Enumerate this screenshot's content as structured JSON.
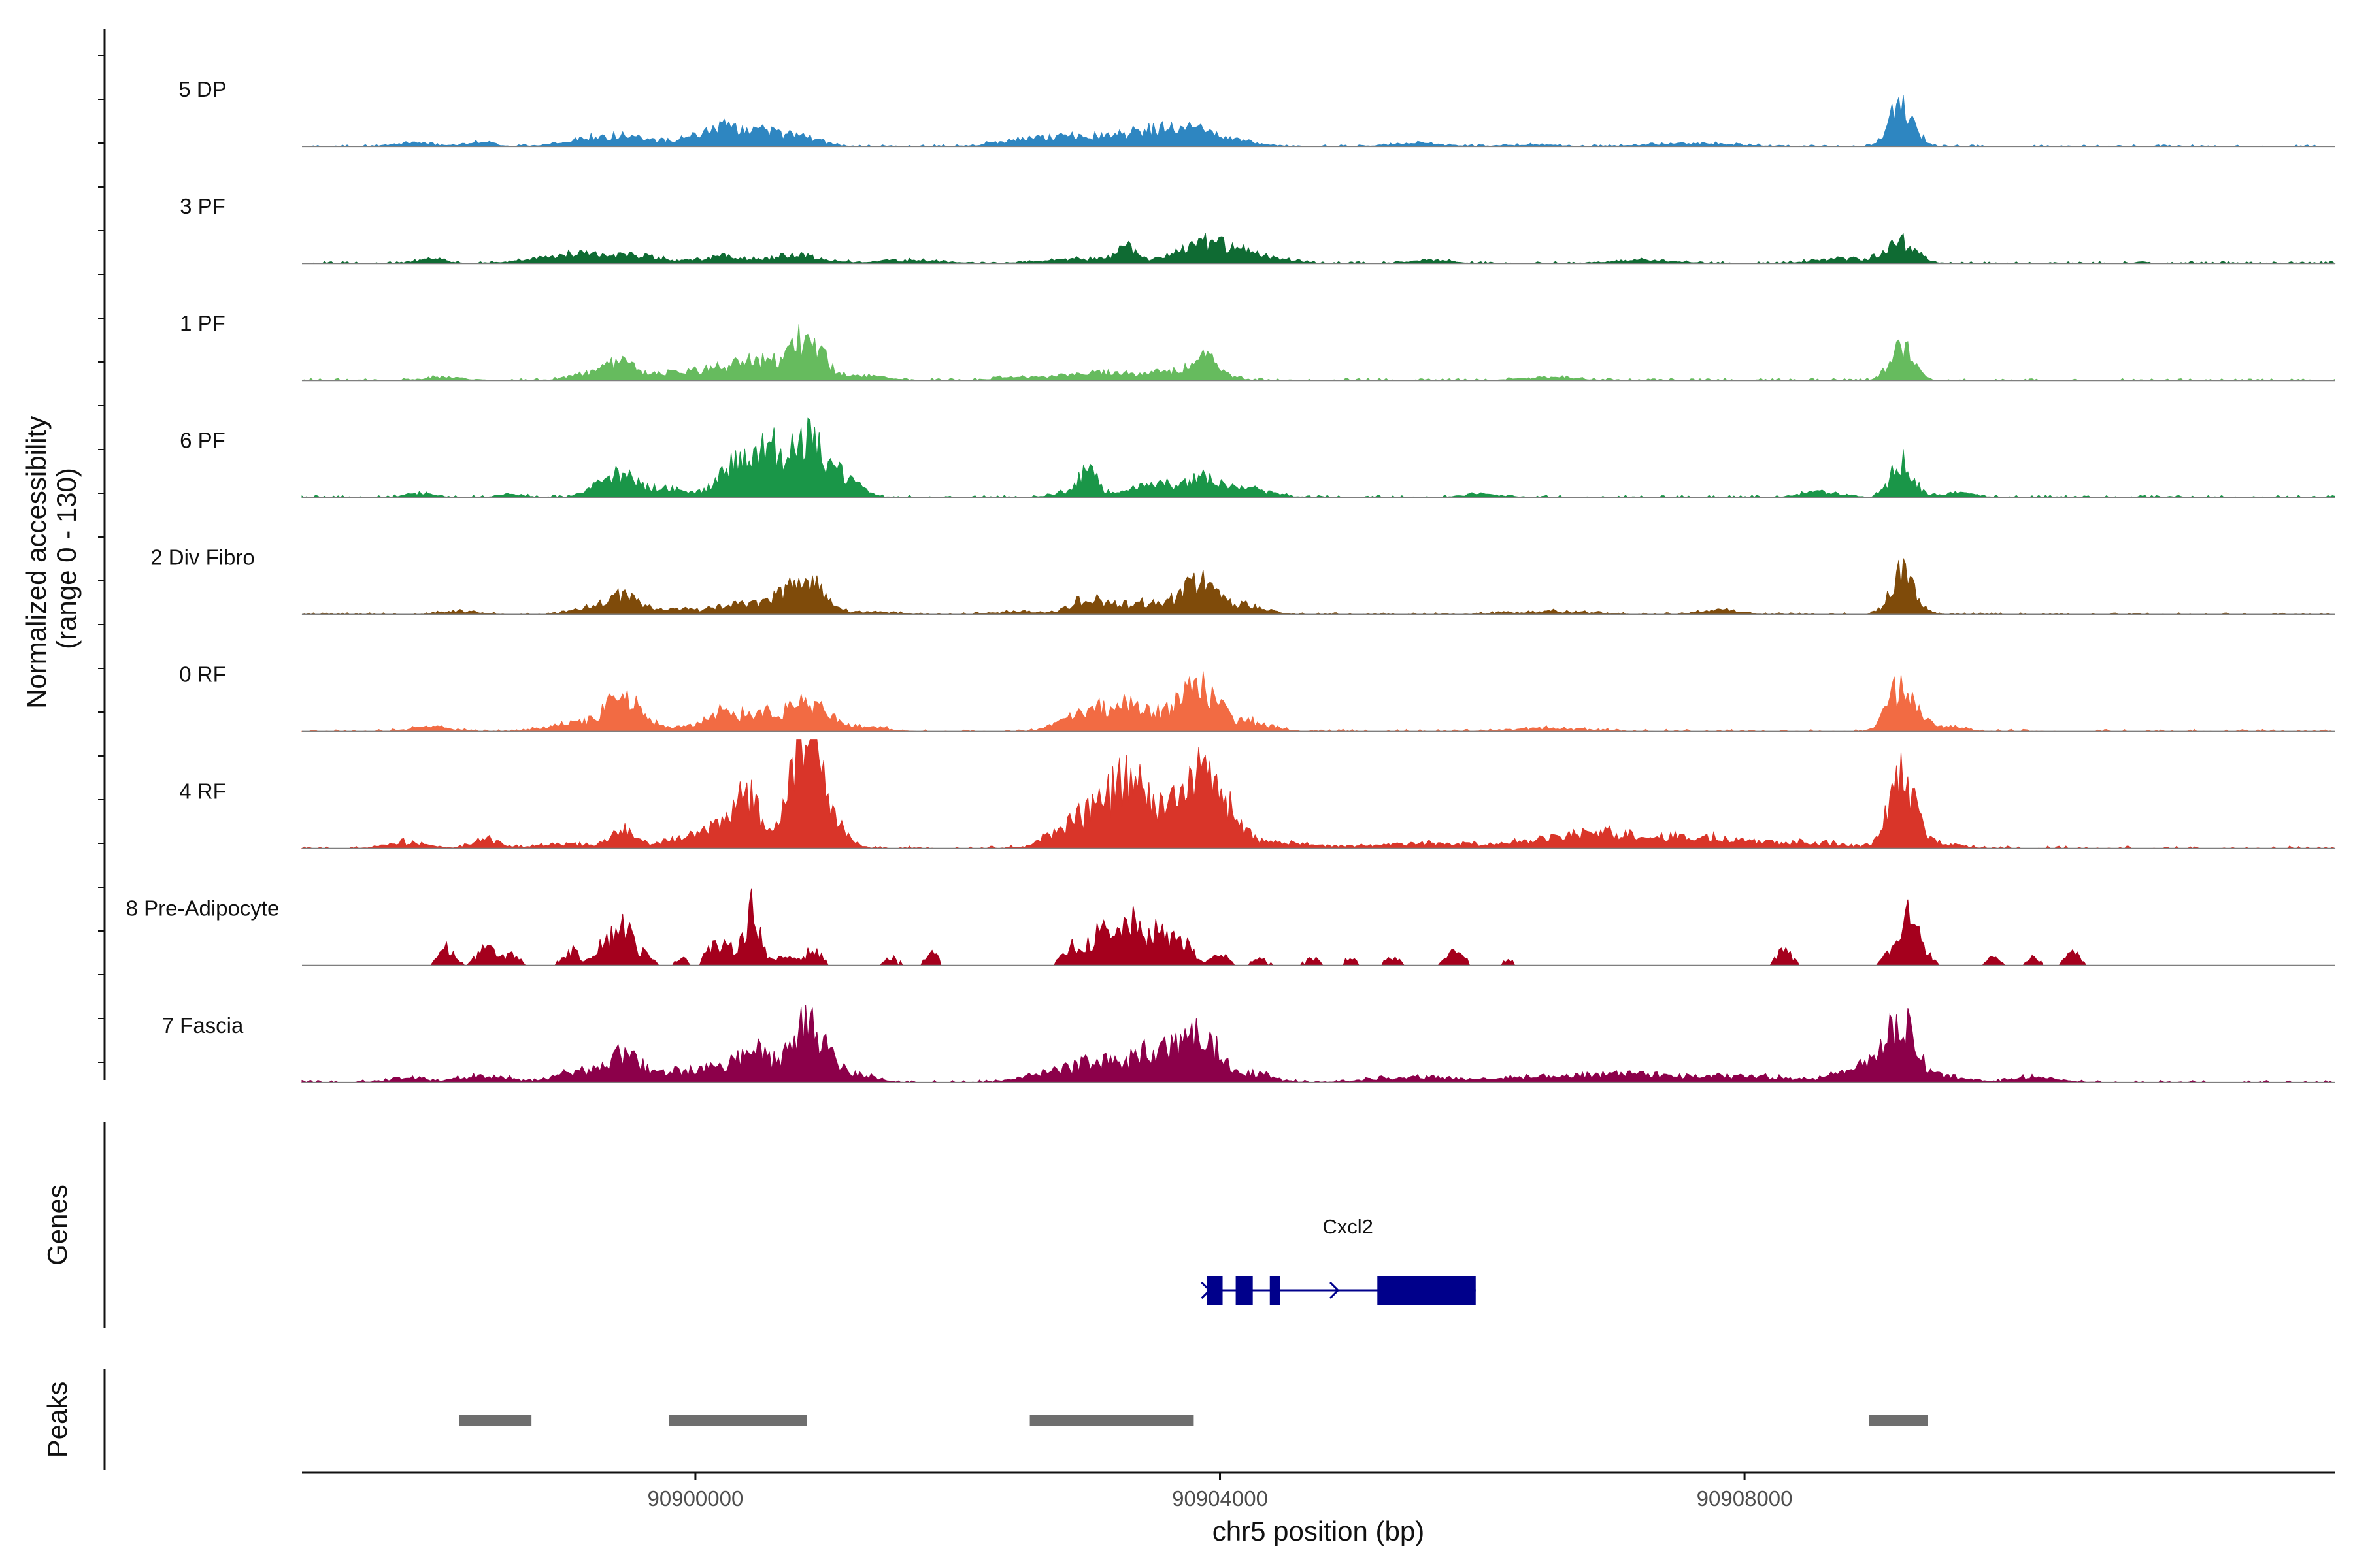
{
  "chart_data": {
    "type": "area",
    "title": "",
    "ylabel": "Normalized accessibility\n(range 0 - 130)",
    "ylabel_lines": [
      "Normalized accessibility",
      "(range 0 - 130)"
    ],
    "xlabel": "chr5 position (bp)",
    "chromosome": "chr5",
    "xlim": [
      90897000,
      90912500
    ],
    "ylim": [
      0,
      130
    ],
    "x_ticks": [
      90900000,
      90904000,
      90908000
    ],
    "x_tick_labels": [
      "90900000",
      "90904000",
      "90908000"
    ],
    "series": [
      {
        "name": "5 DP",
        "color": "#2e86c1",
        "peaks": [
          [
            90897850,
            2,
            160
          ],
          [
            90898350,
            3,
            100
          ],
          [
            90899300,
            7,
            240
          ],
          [
            90899700,
            2,
            200
          ],
          [
            90900300,
            14,
            240
          ],
          [
            90900800,
            6,
            150
          ],
          [
            90902500,
            3,
            200
          ],
          [
            90903000,
            6,
            350
          ],
          [
            90903700,
            12,
            300
          ],
          [
            90905500,
            2,
            200
          ],
          [
            90906400,
            1,
            200
          ],
          [
            90907600,
            2,
            300
          ],
          [
            90909200,
            30,
            90
          ]
        ],
        "noise": 1.2
      },
      {
        "name": "3 PF",
        "color": "#0f6b33",
        "peaks": [
          [
            90898000,
            3,
            100
          ],
          [
            90899100,
            7,
            280
          ],
          [
            90899600,
            4,
            150
          ],
          [
            90900200,
            5,
            150
          ],
          [
            90900750,
            6,
            180
          ],
          [
            90901600,
            2,
            250
          ],
          [
            90903300,
            9,
            70
          ],
          [
            90903000,
            3,
            300
          ],
          [
            90903900,
            14,
            200
          ],
          [
            90904300,
            4,
            200
          ],
          [
            90905600,
            2,
            150
          ],
          [
            90907200,
            2,
            250
          ],
          [
            90908800,
            3,
            250
          ],
          [
            90909200,
            14,
            110
          ]
        ],
        "noise": 1.3
      },
      {
        "name": "1 PF",
        "color": "#66bb5e",
        "peaks": [
          [
            90898100,
            2,
            150
          ],
          [
            90899200,
            5,
            150
          ],
          [
            90899450,
            13,
            100
          ],
          [
            90899800,
            4,
            150
          ],
          [
            90900200,
            8,
            200
          ],
          [
            90900500,
            10,
            150
          ],
          [
            90900850,
            28,
            130
          ],
          [
            90901300,
            3,
            150
          ],
          [
            90902500,
            2,
            200
          ],
          [
            90903100,
            5,
            250
          ],
          [
            90903700,
            6,
            250
          ],
          [
            90903900,
            10,
            90
          ],
          [
            90906500,
            2,
            200
          ],
          [
            90909200,
            22,
            90
          ]
        ],
        "noise": 1.5
      },
      {
        "name": "6 PF",
        "color": "#1a9648",
        "peaks": [
          [
            90897900,
            3,
            100
          ],
          [
            90898600,
            2,
            100
          ],
          [
            90899400,
            16,
            140
          ],
          [
            90899800,
            6,
            140
          ],
          [
            90900300,
            22,
            130
          ],
          [
            90900550,
            28,
            90
          ],
          [
            90900850,
            38,
            140
          ],
          [
            90901150,
            10,
            120
          ],
          [
            90902800,
            3,
            100
          ],
          [
            90903000,
            18,
            70
          ],
          [
            90903500,
            8,
            200
          ],
          [
            90903900,
            12,
            160
          ],
          [
            90904300,
            4,
            150
          ],
          [
            90906000,
            2,
            150
          ],
          [
            90908600,
            4,
            150
          ],
          [
            90909200,
            26,
            80
          ],
          [
            90909600,
            3,
            150
          ]
        ],
        "noise": 1.6
      },
      {
        "name": "2 Div Fibro",
        "color": "#7f4b0a",
        "peaks": [
          [
            90898200,
            2,
            150
          ],
          [
            90899200,
            4,
            150
          ],
          [
            90899450,
            12,
            110
          ],
          [
            90899800,
            3,
            150
          ],
          [
            90900300,
            6,
            200
          ],
          [
            90900650,
            8,
            150
          ],
          [
            90900850,
            22,
            120
          ],
          [
            90901300,
            2,
            200
          ],
          [
            90902500,
            2,
            200
          ],
          [
            90903000,
            10,
            120
          ],
          [
            90903500,
            8,
            250
          ],
          [
            90903850,
            22,
            110
          ],
          [
            90904200,
            6,
            150
          ],
          [
            90906500,
            2,
            300
          ],
          [
            90907800,
            3,
            150
          ],
          [
            90909200,
            28,
            90
          ]
        ],
        "noise": 1.3
      },
      {
        "name": "0 RF",
        "color": "#f26b43",
        "peaks": [
          [
            90898000,
            3,
            150
          ],
          [
            90899100,
            6,
            200
          ],
          [
            90899450,
            22,
            120
          ],
          [
            90899800,
            3,
            150
          ],
          [
            90900200,
            14,
            120
          ],
          [
            90900500,
            12,
            120
          ],
          [
            90900850,
            18,
            160
          ],
          [
            90901300,
            3,
            150
          ],
          [
            90902900,
            8,
            150
          ],
          [
            90903200,
            14,
            160
          ],
          [
            90903500,
            10,
            200
          ],
          [
            90903850,
            28,
            140
          ],
          [
            90904250,
            6,
            150
          ],
          [
            90906500,
            2,
            300
          ],
          [
            90909200,
            32,
            100
          ],
          [
            90909500,
            3,
            150
          ]
        ],
        "noise": 1.5
      },
      {
        "name": "4 RF",
        "color": "#d93529",
        "peaks": [
          [
            90897800,
            4,
            150
          ],
          [
            90898400,
            6,
            100
          ],
          [
            90899000,
            3,
            200
          ],
          [
            90899450,
            12,
            90
          ],
          [
            90899900,
            3,
            200
          ],
          [
            90900000,
            4,
            200
          ],
          [
            90900250,
            12,
            150
          ],
          [
            90900400,
            28,
            90
          ],
          [
            90900650,
            10,
            150
          ],
          [
            90900850,
            72,
            110
          ],
          [
            90901000,
            20,
            120
          ],
          [
            90902800,
            10,
            150
          ],
          [
            90903050,
            18,
            150
          ],
          [
            90903300,
            38,
            140
          ],
          [
            90903600,
            22,
            150
          ],
          [
            90903850,
            40,
            110
          ],
          [
            90904050,
            25,
            120
          ],
          [
            90904500,
            4,
            200
          ],
          [
            90905500,
            3,
            400
          ],
          [
            90906500,
            3,
            400
          ],
          [
            90906900,
            8,
            300
          ],
          [
            90907500,
            5,
            300
          ],
          [
            90908000,
            5,
            300
          ],
          [
            90908600,
            3,
            200
          ],
          [
            90909200,
            48,
            100
          ],
          [
            90909500,
            3,
            150
          ]
        ],
        "noise": 1.8
      },
      {
        "name": "8 Pre-Adipocyte",
        "color": "#a5001d",
        "peaks": [
          [
            90898100,
            12,
            60
          ],
          [
            90898400,
            14,
            60
          ],
          [
            90898600,
            8,
            60
          ],
          [
            90899050,
            10,
            60
          ],
          [
            90899300,
            16,
            70
          ],
          [
            90899450,
            28,
            60
          ],
          [
            90899600,
            8,
            60
          ],
          [
            90899900,
            6,
            40
          ],
          [
            90900100,
            6,
            40
          ],
          [
            90900200,
            12,
            80
          ],
          [
            90900400,
            18,
            70
          ],
          [
            90900450,
            24,
            50
          ],
          [
            90900700,
            6,
            80
          ],
          [
            90900900,
            10,
            60
          ],
          [
            90901500,
            5,
            50
          ],
          [
            90901800,
            8,
            50
          ],
          [
            90902900,
            14,
            80
          ],
          [
            90903100,
            22,
            70
          ],
          [
            90903300,
            30,
            70
          ],
          [
            90903500,
            22,
            80
          ],
          [
            90903700,
            18,
            80
          ],
          [
            90904000,
            8,
            60
          ],
          [
            90904300,
            5,
            60
          ],
          [
            90904700,
            5,
            50
          ],
          [
            90905000,
            5,
            50
          ],
          [
            90905300,
            6,
            60
          ],
          [
            90905800,
            12,
            60
          ],
          [
            90906200,
            3,
            50
          ],
          [
            90908300,
            10,
            60
          ],
          [
            90909100,
            8,
            50
          ],
          [
            90909250,
            32,
            60
          ],
          [
            90909350,
            12,
            60
          ],
          [
            90909900,
            5,
            50
          ],
          [
            90910200,
            5,
            50
          ],
          [
            90910500,
            8,
            60
          ]
        ],
        "noise": 0
      },
      {
        "name": "7 Fascia",
        "color": "#8c004a",
        "peaks": [
          [
            90897800,
            3,
            150
          ],
          [
            90898400,
            4,
            200
          ],
          [
            90899100,
            8,
            150
          ],
          [
            90899450,
            18,
            120
          ],
          [
            90899800,
            6,
            150
          ],
          [
            90900200,
            10,
            180
          ],
          [
            90900450,
            20,
            100
          ],
          [
            90900850,
            38,
            140
          ],
          [
            90901200,
            5,
            150
          ],
          [
            90902700,
            6,
            200
          ],
          [
            90903100,
            14,
            180
          ],
          [
            90903500,
            20,
            150
          ],
          [
            90903850,
            32,
            140
          ],
          [
            90904250,
            6,
            150
          ],
          [
            90905500,
            4,
            300
          ],
          [
            90906500,
            4,
            300
          ],
          [
            90907200,
            6,
            300
          ],
          [
            90908000,
            4,
            300
          ],
          [
            90908800,
            4,
            200
          ],
          [
            90909000,
            10,
            150
          ],
          [
            90909200,
            34,
            110
          ],
          [
            90909500,
            4,
            150
          ],
          [
            90910200,
            3,
            200
          ]
        ],
        "noise": 1.6
      }
    ],
    "genes": [
      {
        "name": "Cxcl2",
        "strand": "+",
        "start": 90903900,
        "end": 90905950,
        "exons": [
          [
            90903900,
            90904020
          ],
          [
            90904120,
            90904250
          ],
          [
            90904380,
            90904460
          ],
          [
            90905200,
            90905950
          ]
        ],
        "color": "#00008b"
      }
    ],
    "peaks_panel": {
      "title": "Peaks",
      "color": "#6e6e6e",
      "regions": [
        [
          90898200,
          90898750
        ],
        [
          90899800,
          90900850
        ],
        [
          90902550,
          90903800
        ],
        [
          90908950,
          90909400
        ]
      ]
    },
    "genes_panel_title": "Genes"
  }
}
